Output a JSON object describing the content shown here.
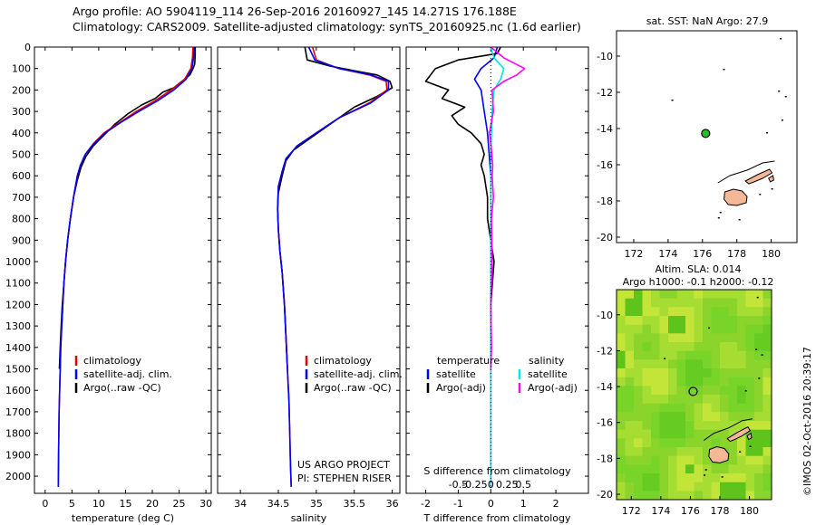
{
  "title_line1": "Argo profile: AO 5904119_114 26-Sep-2016 20160927_145 14.271S 176.188E",
  "title_line2": "Climatology: CARS2009. Satellite-adjusted climatology: synTS_20160925.nc (1.6d earlier)",
  "side_label": "©IMOS 02-Oct-2016 20:39:17",
  "colors": {
    "climatology": "#e60000",
    "satellite": "#0000ff",
    "argo": "#000000",
    "sal_satellite": "#00e5e5",
    "sal_argo": "#ff00ff",
    "land": "#f4b896",
    "sla_bg": "#7ed321",
    "float_marker": "#22c022"
  },
  "chart_data": [
    {
      "type": "line",
      "id": "temperature",
      "xlabel": "temperature (deg C)",
      "ylabel": "",
      "xlim": [
        -2,
        31
      ],
      "ylim": [
        2080,
        0
      ],
      "xticks": [
        0,
        5,
        10,
        15,
        20,
        25,
        30
      ],
      "yticks": [
        0,
        100,
        200,
        300,
        400,
        500,
        600,
        700,
        800,
        900,
        1000,
        1100,
        1200,
        1300,
        1400,
        1500,
        1600,
        1700,
        1800,
        1900,
        2000
      ],
      "legend": [
        "climatology",
        "satellite-adj. clim.",
        "Argo(..raw -QC)"
      ],
      "series": [
        {
          "name": "climatology",
          "color": "#e60000",
          "x": [
            27.6,
            27.5,
            27.2,
            26.0,
            23.5,
            20.5,
            17.0,
            14.0,
            11.0,
            9.0,
            7.5,
            6.6,
            6.0,
            5.3,
            4.7,
            4.2,
            3.8,
            3.5,
            3.3,
            3.1,
            2.9,
            2.8,
            2.7,
            2.6,
            2.5,
            2.45
          ],
          "y": [
            0,
            50,
            100,
            150,
            200,
            250,
            300,
            350,
            400,
            450,
            500,
            550,
            600,
            700,
            800,
            900,
            1000,
            1100,
            1200,
            1300,
            1400,
            1500,
            1600,
            1700,
            1900,
            2050
          ]
        },
        {
          "name": "satellite-adj. clim.",
          "color": "#0000ff",
          "x": [
            27.8,
            27.7,
            27.4,
            26.3,
            24.0,
            21.0,
            17.5,
            14.2,
            11.2,
            9.1,
            7.5,
            6.6,
            6.0,
            5.3,
            4.7,
            4.2,
            3.8,
            3.5,
            3.3,
            3.1,
            2.9,
            2.8,
            2.7,
            2.6,
            2.5,
            2.45
          ],
          "y": [
            0,
            50,
            100,
            150,
            200,
            250,
            300,
            350,
            400,
            450,
            500,
            550,
            600,
            700,
            800,
            900,
            1000,
            1100,
            1200,
            1300,
            1400,
            1500,
            1600,
            1700,
            1900,
            2050
          ]
        },
        {
          "name": "Argo(..raw -QC)",
          "color": "#000000",
          "x": [
            28.0,
            28.0,
            27.9,
            27.6,
            27.0,
            26.0,
            25.0,
            24.0,
            22.0,
            20.5,
            18.0,
            15.5,
            13.0,
            11.0,
            9.0,
            7.6,
            6.7,
            6.0,
            5.3,
            4.7,
            4.2,
            3.8,
            3.5,
            3.2,
            3.0,
            2.8,
            2.65
          ],
          "y": [
            0,
            40,
            80,
            100,
            130,
            150,
            170,
            190,
            210,
            240,
            270,
            310,
            360,
            410,
            460,
            510,
            560,
            620,
            700,
            800,
            900,
            1000,
            1100,
            1200,
            1300,
            1400,
            1500
          ]
        }
      ]
    },
    {
      "type": "line",
      "id": "salinity",
      "xlabel": "salinity",
      "ylabel": "",
      "xlim": [
        33.7,
        36.1
      ],
      "ylim": [
        2080,
        0
      ],
      "xticks": [
        34,
        34.5,
        35,
        35.5,
        36
      ],
      "legend": [
        "climatology",
        "satellite-adj. clim.",
        "Argo(..raw -QC)"
      ],
      "annotation": [
        "US ARGO PROJECT",
        "PI: STEPHEN RISER"
      ],
      "series": [
        {
          "name": "climatology",
          "color": "#e60000",
          "x": [
            34.95,
            35.0,
            35.3,
            35.7,
            35.92,
            35.93,
            35.7,
            35.3,
            35.0,
            34.75,
            34.6,
            34.55,
            34.5,
            34.49,
            34.5,
            34.52,
            34.55,
            34.58,
            34.6,
            34.62,
            34.64,
            34.65,
            34.66,
            34.67
          ],
          "y": [
            0,
            60,
            100,
            130,
            160,
            200,
            260,
            330,
            400,
            460,
            520,
            580,
            650,
            750,
            850,
            950,
            1050,
            1200,
            1350,
            1500,
            1650,
            1800,
            1950,
            2050
          ]
        },
        {
          "name": "satellite-adj. clim.",
          "color": "#0000ff",
          "x": [
            34.9,
            34.98,
            35.3,
            35.72,
            35.95,
            35.95,
            35.72,
            35.3,
            35.0,
            34.75,
            34.6,
            34.55,
            34.5,
            34.49,
            34.5,
            34.52,
            34.55,
            34.58,
            34.6,
            34.62,
            34.64,
            34.65,
            34.66,
            34.67
          ],
          "y": [
            0,
            60,
            100,
            130,
            160,
            200,
            260,
            330,
            400,
            460,
            520,
            580,
            650,
            750,
            850,
            950,
            1050,
            1200,
            1350,
            1500,
            1650,
            1800,
            1950,
            2050
          ]
        },
        {
          "name": "Argo(..raw -QC)",
          "color": "#000000",
          "x": [
            34.85,
            34.88,
            35.2,
            35.5,
            35.8,
            35.97,
            36.0,
            35.8,
            35.5,
            35.3,
            35.1,
            34.9,
            34.7,
            34.6,
            34.55,
            34.5,
            34.49,
            34.5,
            34.52,
            34.55,
            34.58,
            34.6,
            34.62
          ],
          "y": [
            0,
            60,
            90,
            110,
            130,
            160,
            190,
            230,
            280,
            330,
            380,
            430,
            480,
            530,
            600,
            680,
            760,
            850,
            950,
            1050,
            1200,
            1350,
            1500
          ]
        }
      ]
    },
    {
      "type": "line",
      "id": "difference",
      "xlabel": "T difference from climatology",
      "xlabel_top": "S difference from climatology",
      "xlim": [
        -2.6,
        3.0
      ],
      "ylim": [
        2080,
        0
      ],
      "xticks": [
        -2,
        -1,
        0,
        1,
        2
      ],
      "xticks_top": [
        -0.5,
        -0.25,
        0,
        0.25,
        0.5
      ],
      "xtick_labels_top": [
        "-0.5",
        "-0.25",
        "0",
        "0.25",
        "0.5"
      ],
      "legend_headers": [
        "temperature",
        "salinity"
      ],
      "legend": [
        "satellite",
        "Argo(-adj)",
        "satellite",
        "Argo(-adj)"
      ],
      "series": [
        {
          "name": "temperature satellite",
          "color": "#0000ff",
          "x": [
            0.2,
            0.1,
            -0.3,
            -0.5,
            -0.3,
            -0.2,
            -0.1,
            -0.05,
            0,
            0,
            0,
            0,
            0,
            0,
            0
          ],
          "y": [
            0,
            50,
            100,
            150,
            200,
            300,
            400,
            500,
            600,
            800,
            1000,
            1200,
            1500,
            1800,
            2050
          ]
        },
        {
          "name": "temperature Argo(-adj)",
          "color": "#000000",
          "x": [
            0.3,
            0.2,
            -1.0,
            -1.7,
            -2.0,
            -1.3,
            -1.5,
            -0.8,
            -1.2,
            -1.0,
            -0.6,
            -0.3,
            -0.2,
            -0.3,
            -0.2,
            -0.1,
            -0.1,
            0.1,
            0,
            0
          ],
          "y": [
            0,
            30,
            60,
            100,
            160,
            200,
            240,
            280,
            320,
            360,
            400,
            450,
            500,
            550,
            600,
            700,
            800,
            1000,
            1200,
            1500
          ]
        },
        {
          "name": "salinity satellite",
          "color": "#00e5e5",
          "x": [
            0,
            0.05,
            0.2,
            0.15,
            0.05,
            0.02,
            0.01,
            0.0,
            0.0,
            0.0,
            0.0,
            0.0,
            0.0,
            0.0
          ],
          "y": [
            0,
            50,
            100,
            150,
            200,
            300,
            400,
            500,
            600,
            800,
            1000,
            1300,
            1700,
            2050
          ]
        },
        {
          "name": "salinity Argo(-adj)",
          "color": "#ff00ff",
          "x": [
            0,
            0.2,
            0.52,
            0.4,
            0.2,
            0.02,
            0.04,
            -0.02,
            0.0,
            0.03,
            0.02,
            0.04,
            0.01,
            0.02,
            0.0,
            0.01,
            0.0
          ],
          "y": [
            0,
            50,
            100,
            130,
            160,
            200,
            300,
            400,
            450,
            550,
            600,
            700,
            800,
            1000,
            1200,
            1400,
            1500
          ]
        }
      ]
    },
    {
      "type": "scatter",
      "id": "sst-map",
      "title": "sat. SST: NaN  Argo: 27.9",
      "xlim": [
        171,
        181.5
      ],
      "ylim": [
        -20.3,
        -8.6
      ],
      "xticks": [
        172,
        174,
        176,
        178,
        180
      ],
      "yticks": [
        -10,
        -12,
        -14,
        -16,
        -18,
        -20
      ],
      "float_position": [
        176.188,
        -14.271
      ]
    },
    {
      "type": "heatmap",
      "id": "sla-map",
      "title": "Altim. SLA: 0.014",
      "subtitle": "Argo h1000: -0.1 h2000: -0.12",
      "xlim": [
        171,
        181.5
      ],
      "ylim": [
        -20.3,
        -8.6
      ],
      "xticks": [
        172,
        174,
        176,
        178,
        180
      ],
      "yticks": [
        -10,
        -12,
        -14,
        -16,
        -18,
        -20
      ],
      "float_position": [
        176.188,
        -14.271
      ]
    }
  ]
}
